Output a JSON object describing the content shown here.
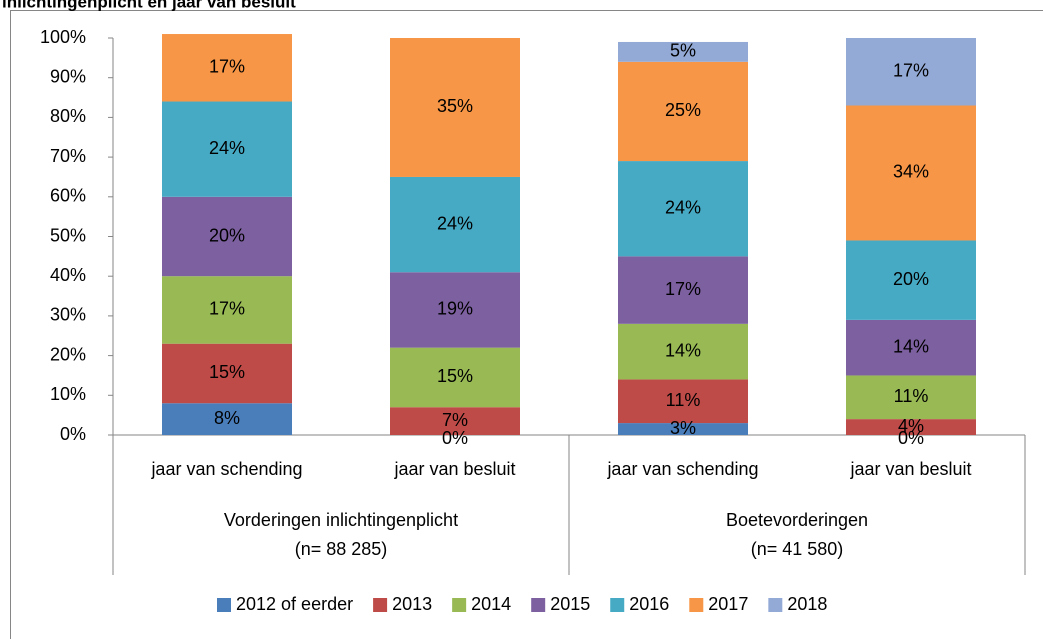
{
  "chart_data": {
    "type": "bar",
    "stacked": true,
    "title": "inlichtingenplicht en jaar van besluit",
    "categories": [
      "jaar van schending",
      "jaar van besluit",
      "jaar van schending",
      "jaar van besluit"
    ],
    "groups": [
      {
        "label": "Vorderingen inlichtingenplicht",
        "note": "(n= 88 285)"
      },
      {
        "label": "Boetevorderingen",
        "note": "(n= 41 580)"
      }
    ],
    "series": [
      {
        "name": "2012 of eerder",
        "color": "#4a7ebb",
        "values": [
          8,
          0,
          3,
          0
        ],
        "value_labels": [
          "8%",
          "0%",
          "3%",
          "0%"
        ]
      },
      {
        "name": "2013",
        "color": "#be4b48",
        "values": [
          15,
          7,
          11,
          4
        ],
        "value_labels": [
          "15%",
          "7%",
          "11%",
          "4%"
        ]
      },
      {
        "name": "2014",
        "color": "#98b954",
        "values": [
          17,
          15,
          14,
          11
        ],
        "value_labels": [
          "17%",
          "15%",
          "14%",
          "11%"
        ]
      },
      {
        "name": "2015",
        "color": "#7d60a0",
        "values": [
          20,
          19,
          17,
          14
        ],
        "value_labels": [
          "20%",
          "19%",
          "17%",
          "14%"
        ]
      },
      {
        "name": "2016",
        "color": "#46aac5",
        "values": [
          24,
          24,
          24,
          20
        ],
        "value_labels": [
          "24%",
          "24%",
          "24%",
          "20%"
        ]
      },
      {
        "name": "2017",
        "color": "#f79646",
        "values": [
          17,
          35,
          25,
          34
        ],
        "value_labels": [
          "17%",
          "35%",
          "25%",
          "34%"
        ]
      },
      {
        "name": "2018",
        "color": "#94aad6",
        "values": [
          null,
          null,
          5,
          17
        ],
        "value_labels": [
          null,
          null,
          "5%",
          "17%"
        ]
      }
    ],
    "ylim": [
      0,
      100
    ],
    "yticks": [
      {
        "value": 0,
        "label": "0%"
      },
      {
        "value": 10,
        "label": "10%"
      },
      {
        "value": 20,
        "label": "20%"
      },
      {
        "value": 30,
        "label": "30%"
      },
      {
        "value": 40,
        "label": "40%"
      },
      {
        "value": 50,
        "label": "50%"
      },
      {
        "value": 60,
        "label": "60%"
      },
      {
        "value": 70,
        "label": "70%"
      },
      {
        "value": 80,
        "label": "80%"
      },
      {
        "value": 90,
        "label": "90%"
      },
      {
        "value": 100,
        "label": "100%"
      }
    ],
    "legend": "bottom"
  }
}
